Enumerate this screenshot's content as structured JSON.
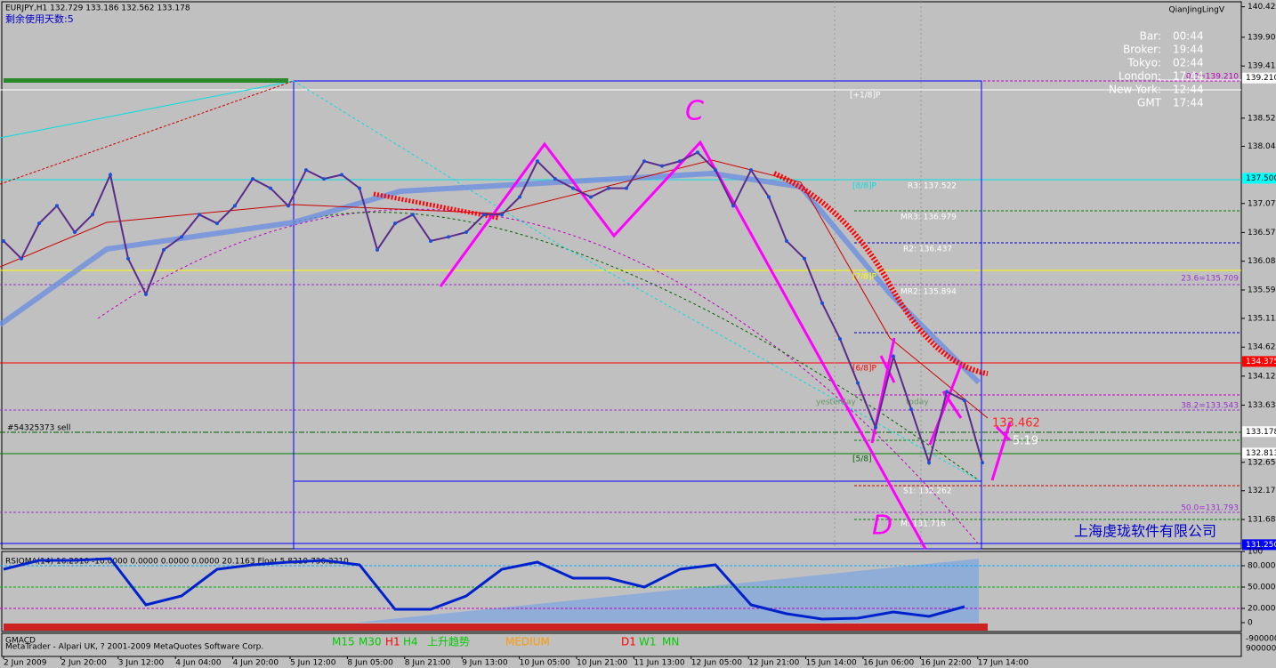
{
  "header": {
    "symbol": "EURJPY,H1  132.729 133.186 132.562 133.178",
    "days_left": "剩余使用天数:5",
    "indicator": "QianJingLingV"
  },
  "info_panel": [
    {
      "label": "Bar:",
      "value": "00:44"
    },
    {
      "label": "Broker:",
      "value": "19:44"
    },
    {
      "label": "Tokyo:",
      "value": "02:44"
    },
    {
      "label": "London:",
      "value": "17:44"
    },
    {
      "label": "New York:",
      "value": "12:44"
    },
    {
      "label": "GMT",
      "value": "17:44"
    }
  ],
  "price_axis": {
    "ylim": [
      131.18,
      140.51
    ],
    "ticks": [
      140.425,
      139.905,
      139.415,
      138.525,
      138.045,
      {
        "value": 137.07,
        "label": "137.070"
      },
      136.575,
      136.085,
      135.595,
      {
        "value": 135.11,
        "label": "135.110"
      },
      {
        "value": 134.62,
        "label": "134.620"
      },
      134.125,
      {
        "value": 133.63,
        "label": "133.630"
      },
      132.655,
      {
        "value": 132.17,
        "label": "132.170"
      },
      {
        "value": 131.68,
        "label": "131.680"
      }
    ],
    "markers": [
      {
        "value": 139.21,
        "label": "139.210",
        "color": "#ffffff"
      },
      {
        "value": 137.5,
        "label": "137.500",
        "color": "#00ffff"
      },
      {
        "value": 134.375,
        "label": "134.375",
        "color": "#ff0000"
      },
      {
        "value": 133.178,
        "label": "133.178",
        "color": "#ffffff"
      },
      {
        "value": 132.813,
        "label": "132.813",
        "color": "#ffffff"
      },
      {
        "value": 131.25,
        "label": "131.250",
        "color": "#0000ff"
      }
    ]
  },
  "price_path": [
    136.43,
    136.13,
    136.73,
    137.03,
    136.58,
    136.88,
    137.56,
    136.13,
    135.52,
    136.28,
    136.5,
    136.88,
    136.73,
    137.03,
    137.49,
    137.33,
    137.03,
    137.64,
    137.49,
    137.56,
    137.33,
    136.28,
    136.73,
    136.88,
    136.43,
    136.5,
    136.58,
    136.88,
    136.88,
    137.18,
    137.79,
    137.49,
    137.33,
    137.18,
    137.33,
    137.33,
    137.79,
    137.71,
    137.79,
    137.94,
    137.64,
    137.03,
    137.64,
    137.18,
    136.43,
    136.13,
    135.37,
    134.76,
    134.01,
    133.25,
    134.46,
    133.56,
    132.65,
    133.86,
    133.71,
    132.65
  ],
  "levels": [
    "R3: 137.522",
    "MR3: 136.979",
    "R2: 136.437",
    "MR2: 135.894",
    "S1: 132.262",
    "M: 131.716"
  ],
  "fib": [
    "0.0=139.210",
    "23.6=135.709",
    "38.2=133.543",
    "50.0=131.793"
  ],
  "murrey": [
    "[+1/8]P",
    "[8/8]P",
    "[7/8]P",
    "[6/8]P",
    "[5/8]"
  ],
  "annotations": {
    "wave_c": "C",
    "wave_d": "D",
    "price_tag": "133.462",
    "timer": "5:19",
    "order": "#54325373 sell",
    "yesterday": "yesterday",
    "today": "today",
    "company": "上海虔珑软件有限公司"
  },
  "rsi": {
    "title": "RSIOMA(14) 16.2910 -10.0000 0.0000 0.0000 0.0000 20.1163  Float 5.8210 736.2210",
    "ylim": [
      0,
      100
    ],
    "ticks": [
      100,
      {
        "value": 80,
        "label": "80.000"
      },
      {
        "value": 50,
        "label": "50.000"
      },
      {
        "value": 20,
        "label": "20.000"
      },
      0
    ],
    "values": [
      75,
      87.5,
      87.5,
      90,
      25,
      37.5,
      75,
      81.25,
      85,
      87.5,
      81.25,
      18.75,
      18.75,
      37.5,
      75,
      85,
      62.5,
      62.5,
      50,
      75,
      81.25,
      25,
      12.5,
      5,
      6.25,
      15,
      8.75,
      22.5
    ]
  },
  "macd": {
    "title": "GMACD",
    "axis": [
      "-900000",
      "900000"
    ]
  },
  "footer": {
    "copyright": "MetaTrader - Alpari UK, ? 2001-2009 MetaQuotes Software Corp.",
    "timeframes": [
      {
        "label": "M15",
        "color": "#00cc00"
      },
      {
        "label": "M30",
        "color": "#00cc00"
      },
      {
        "label": "H1",
        "color": "#ff0000"
      },
      {
        "label": "H4",
        "color": "#00cc00"
      },
      {
        "label": "上升趋势",
        "color": "#00cc00"
      },
      {
        "label": "MEDIUM",
        "color": "#ff9900"
      },
      {
        "label": "D1",
        "color": "#ff0000"
      },
      {
        "label": "W1",
        "color": "#00cc00"
      },
      {
        "label": "MN",
        "color": "#00cc00"
      }
    ]
  },
  "time_axis": [
    "2 Jun 2009",
    "2 Jun 20:00",
    "3 Jun 12:00",
    "4 Jun 04:00",
    "4 Jun 20:00",
    "5 Jun 12:00",
    "8 Jun 05:00",
    "8 Jun 21:00",
    "9 Jun 13:00",
    "10 Jun 05:00",
    "10 Jun 21:00",
    "11 Jun 13:00",
    "12 Jun 05:00",
    "12 Jun 21:00",
    "15 Jun 14:00",
    "16 Jun 06:00",
    "16 Jun 22:00",
    "17 Jun 14:00"
  ]
}
